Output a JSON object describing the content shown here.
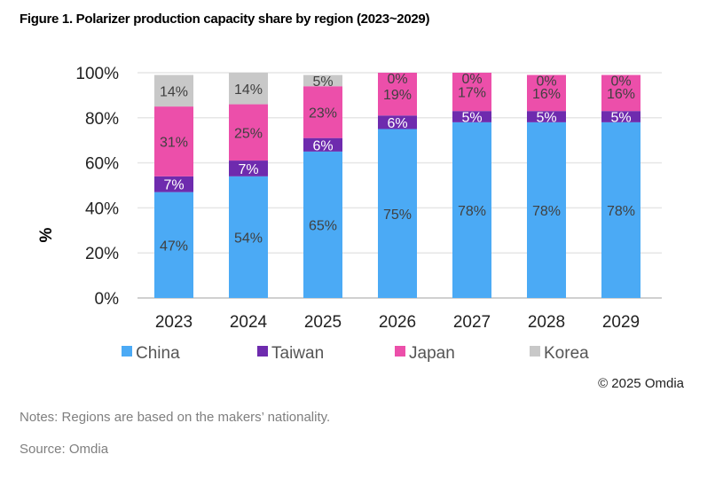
{
  "title": "Figure 1. Polarizer production capacity share by region (2023~2029)",
  "copyright": "© 2025 Omdia",
  "notes": "Notes: Regions are based on the makers’ nationality.",
  "source": "Source: Omdia",
  "chart_data": {
    "type": "bar",
    "stacked": true,
    "title": "",
    "xlabel": "",
    "ylabel": "%",
    "ylim": [
      0,
      100
    ],
    "yticks": [
      "0%",
      "20%",
      "40%",
      "60%",
      "80%",
      "100%"
    ],
    "grid": true,
    "legend_position": "bottom",
    "categories": [
      "2023",
      "2024",
      "2025",
      "2026",
      "2027",
      "2028",
      "2029"
    ],
    "series": [
      {
        "name": "China",
        "color": "#4BAAF5",
        "label_color": "#404040",
        "values": [
          47,
          54,
          65,
          75,
          78,
          78,
          78
        ]
      },
      {
        "name": "Taiwan",
        "color": "#6E2BAE",
        "label_color": "#ffffff",
        "values": [
          7,
          7,
          6,
          6,
          5,
          5,
          5
        ]
      },
      {
        "name": "Japan",
        "color": "#EC4FAA",
        "label_color": "#404040",
        "values": [
          31,
          25,
          23,
          19,
          17,
          16,
          16
        ]
      },
      {
        "name": "Korea",
        "color": "#C8C8C8",
        "label_color": "#404040",
        "values": [
          14,
          14,
          5,
          0,
          0,
          0,
          0
        ]
      }
    ]
  }
}
